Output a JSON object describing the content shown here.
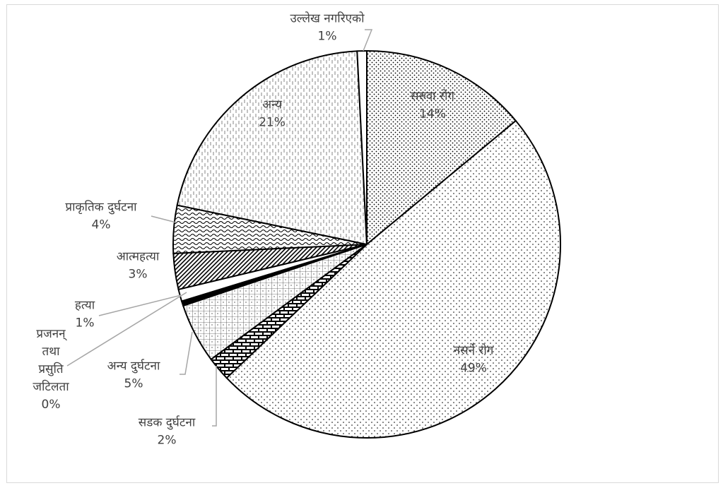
{
  "chart_data": {
    "type": "pie",
    "title": "",
    "slices": [
      {
        "name": "सरुवा रोग",
        "label": "14%",
        "value": 14,
        "pattern": "dots-dense"
      },
      {
        "name": "नसर्ने रोग",
        "label": "49%",
        "value": 49,
        "pattern": "dots-sparse"
      },
      {
        "name": "सडक दुर्घटना",
        "label": "2%",
        "value": 2,
        "pattern": "brick"
      },
      {
        "name": "अन्य दुर्घटना",
        "label": "5%",
        "value": 5,
        "pattern": "grid"
      },
      {
        "name": "प्रजनन् तथा प्रसुति जटिलता",
        "label": "0%",
        "value": 0.4,
        "pattern": "solid-black"
      },
      {
        "name": "हत्या",
        "label": "1%",
        "value": 1,
        "pattern": "white"
      },
      {
        "name": "आत्महत्या",
        "label": "3%",
        "value": 3,
        "pattern": "diagonal"
      },
      {
        "name": "प्राकृतिक दुर्घटना",
        "label": "4%",
        "value": 4,
        "pattern": "wave"
      },
      {
        "name": "अन्य",
        "label": "21%",
        "value": 21,
        "pattern": "vertical-dash"
      },
      {
        "name": "उल्लेख नगरिएको",
        "label": "1%",
        "value": 0.8,
        "pattern": "white"
      }
    ]
  }
}
